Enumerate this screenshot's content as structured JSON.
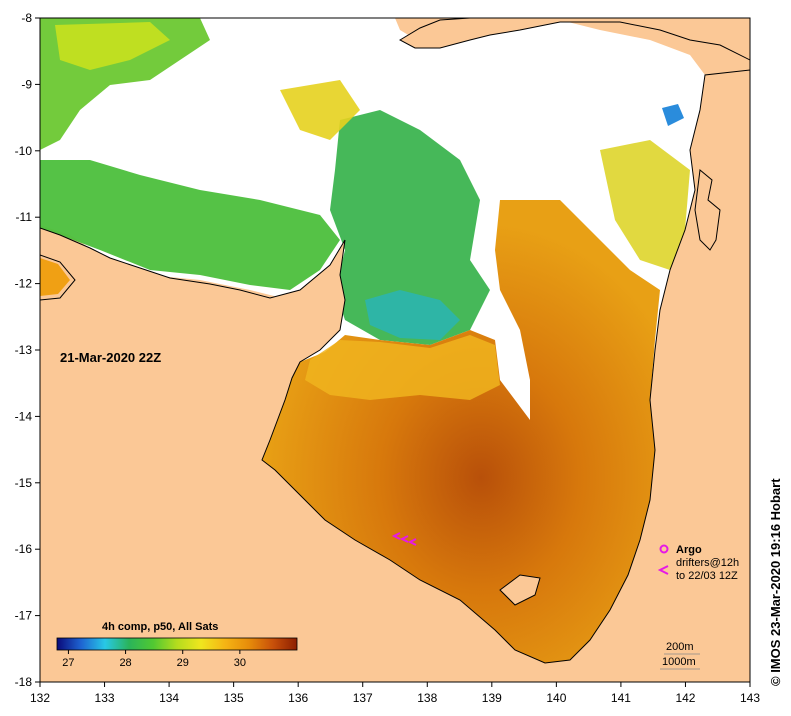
{
  "map": {
    "timestamp": "21-Mar-2020 22Z",
    "credit": "© IMOS 23-Mar-2020 19:16 Hobart",
    "land_color": "#fbc896",
    "no_data_color": "#ffffff",
    "coast_color": "#000000"
  },
  "axes": {
    "x_ticks": [
      "132",
      "133",
      "134",
      "135",
      "136",
      "137",
      "138",
      "139",
      "140",
      "141",
      "142",
      "143"
    ],
    "y_ticks": [
      "-8",
      "-9",
      "-10",
      "-11",
      "-12",
      "-13",
      "-14",
      "-15",
      "-16",
      "-17",
      "-18"
    ],
    "x_range": [
      132,
      143
    ],
    "y_range": [
      -8,
      -18
    ]
  },
  "colorbar": {
    "title": "4h comp, p50, All Sats",
    "ticks": [
      "27",
      "28",
      "29",
      "30"
    ],
    "range": [
      26.8,
      31.0
    ],
    "colors": [
      "#0a0a7a",
      "#1e64d2",
      "#28c8e6",
      "#2ab45a",
      "#50c832",
      "#b4dc1e",
      "#f0e61e",
      "#f5b414",
      "#e68c0a",
      "#c8500a",
      "#8c1e00"
    ]
  },
  "argo_legend": {
    "argo_label": "Argo",
    "drifters_label": "drifters@12h",
    "drifters_date": "to 22/03 12Z",
    "marker_color": "#e619e6"
  },
  "depth_legend": {
    "contour_1": "200m",
    "contour_2": "1000m"
  }
}
